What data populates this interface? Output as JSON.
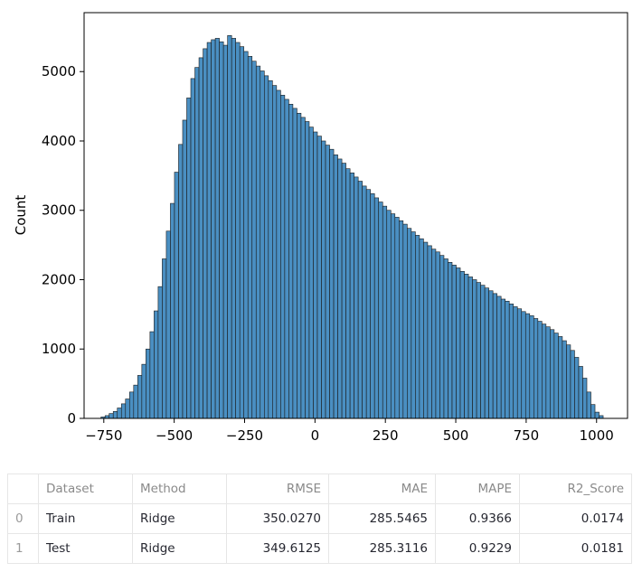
{
  "chart_data": {
    "type": "bar",
    "title": "",
    "xlabel": "",
    "ylabel": "Count",
    "xlim": [
      -820,
      1110
    ],
    "ylim": [
      0,
      5850
    ],
    "xticks": [
      -750,
      -500,
      -250,
      0,
      250,
      500,
      750,
      1000
    ],
    "xtick_labels": [
      "−750",
      "−500",
      "−250",
      "0",
      "250",
      "500",
      "750",
      "1000"
    ],
    "yticks": [
      0,
      1000,
      2000,
      3000,
      4000,
      5000
    ],
    "ytick_labels": [
      "0",
      "1000",
      "2000",
      "3000",
      "4000",
      "5000"
    ],
    "grid": false,
    "bin_start": -760,
    "bin_width": 14.5,
    "bar_color": "#4a8fc2",
    "edge_color": "#1a1a1a",
    "values": [
      20,
      40,
      70,
      100,
      150,
      210,
      280,
      380,
      480,
      620,
      780,
      1000,
      1250,
      1550,
      1900,
      2300,
      2700,
      3100,
      3550,
      3950,
      4300,
      4620,
      4900,
      5060,
      5200,
      5330,
      5420,
      5460,
      5480,
      5430,
      5380,
      5520,
      5480,
      5420,
      5360,
      5290,
      5220,
      5150,
      5080,
      5010,
      4940,
      4870,
      4800,
      4730,
      4660,
      4600,
      4530,
      4470,
      4400,
      4340,
      4280,
      4200,
      4130,
      4070,
      4000,
      3940,
      3880,
      3800,
      3740,
      3680,
      3600,
      3540,
      3480,
      3420,
      3350,
      3300,
      3240,
      3180,
      3120,
      3060,
      3000,
      2950,
      2900,
      2850,
      2800,
      2740,
      2690,
      2640,
      2590,
      2540,
      2490,
      2440,
      2400,
      2350,
      2300,
      2250,
      2210,
      2170,
      2120,
      2080,
      2040,
      2000,
      1960,
      1920,
      1880,
      1840,
      1800,
      1760,
      1720,
      1690,
      1650,
      1610,
      1580,
      1540,
      1510,
      1480,
      1440,
      1400,
      1360,
      1320,
      1280,
      1230,
      1180,
      1120,
      1060,
      980,
      880,
      750,
      580,
      380,
      200,
      90,
      40
    ]
  },
  "table": {
    "columns": [
      "",
      "Dataset",
      "Method",
      "RMSE",
      "MAE",
      "MAPE",
      "R2_Score"
    ],
    "rows": [
      [
        "0",
        "Train",
        "Ridge",
        "350.0270",
        "285.5465",
        "0.9366",
        "0.0174"
      ],
      [
        "1",
        "Test",
        "Ridge",
        "349.6125",
        "285.3116",
        "0.9229",
        "0.0181"
      ]
    ]
  }
}
